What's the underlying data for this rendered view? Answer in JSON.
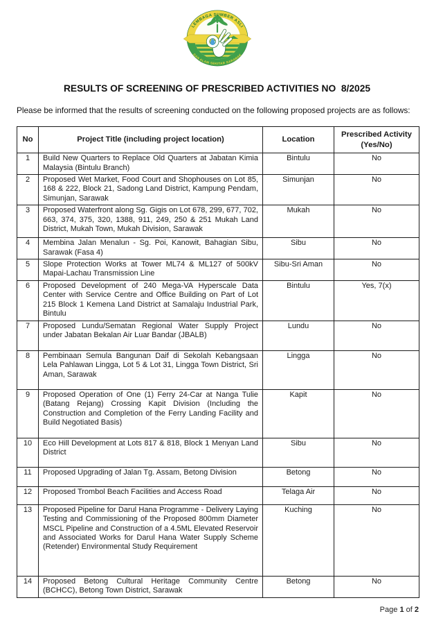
{
  "document": {
    "title": "RESULTS OF SCREENING OF PRESCRIBED ACTIVITIES NO  8/2025",
    "intro": "Please be informed that the results of screening conducted on the following proposed projects are as follows:",
    "footer": {
      "prefix": "Page",
      "page_number": "1",
      "separator": "of",
      "total_pages": "2"
    }
  },
  "logo": {
    "name": "lembaga-sumber-asli-dan-alam-sekitar-sarawak-logo",
    "top_arc_text": "LEMBAGA SUMBER ASLI",
    "bottom_arc_text": "DAN ALAM SEKITAR SARAWAK",
    "colors": {
      "yellow": "#edd63f",
      "green": "#3fa04b",
      "dark_green": "#1f7a33",
      "stripe_yellow": "#e6dc4a",
      "drop_blue": "#4da3d9",
      "white": "#ffffff"
    }
  },
  "table": {
    "headers": {
      "no": "No",
      "project_title": "Project Title (including project location)",
      "location": "Location",
      "prescribed_activity": "Prescribed Activity (Yes/No)"
    },
    "rows": [
      {
        "no": "1",
        "title": "Build New Quarters to Replace Old Quarters at Jabatan Kimia Malaysia (Bintulu Branch)",
        "location": "Bintulu",
        "prescribed": "No"
      },
      {
        "no": "2",
        "title": "Proposed Wet Market, Food Court and Shophouses on Lot 85, 168 & 222, Block 21, Sadong Land District, Kampung Pendam, Simunjan, Sarawak",
        "location": "Simunjan",
        "prescribed": "No"
      },
      {
        "no": "3",
        "title": "Proposed Waterfront along Sg. Gigis on Lot 678, 299, 677, 702, 663, 374, 375, 320, 1388, 911, 249, 250 & 251 Mukah Land District, Mukah Town, Mukah Division, Sarawak",
        "location": "Mukah",
        "prescribed": "No"
      },
      {
        "no": "4",
        "title": "Membina Jalan Menalun - Sg. Poi, Kanowit, Bahagian Sibu, Sarawak (Fasa 4)",
        "location": "Sibu",
        "prescribed": "No"
      },
      {
        "no": "5",
        "title": "Slope Protection Works at Tower ML74 & ML127 of 500kV Mapai-Lachau Transmission Line",
        "location": "Sibu-Sri Aman",
        "prescribed": "No"
      },
      {
        "no": "6",
        "title": "Proposed Development of 240 Mega-VA Hyperscale Data Center with Service Centre and Office Building on Part of Lot 215 Block 1 Kemena Land District at Samalaju Industrial Park, Bintulu",
        "location": "Bintulu",
        "prescribed": "Yes, 7(x)"
      },
      {
        "no": "7",
        "title": "Proposed Lundu/Sematan Regional Water Supply Project under Jabatan Bekalan Air Luar Bandar (JBALB)",
        "location": "Lundu",
        "prescribed": "No"
      },
      {
        "no": "8",
        "title": "Pembinaan Semula Bangunan Daif di Sekolah Kebangsaan Lela Pahlawan Lingga, Lot 5 & Lot 31, Lingga Town District, Sri Aman, Sarawak",
        "location": "Lingga",
        "prescribed": "No"
      },
      {
        "no": "9",
        "title": "Proposed Operation of One (1) Ferry 24-Car at Nanga Tulie (Batang Rejang) Crossing Kapit Division (Including the Construction and Completion of the Ferry Landing Facility and Build Negotiated Basis)",
        "location": "Kapit",
        "prescribed": "No"
      },
      {
        "no": "10",
        "title": "Eco Hill Development at Lots 817 & 818, Block 1 Menyan Land District",
        "location": "Sibu",
        "prescribed": "No"
      },
      {
        "no": "11",
        "title": "Proposed Upgrading of Jalan Tg. Assam, Betong Division",
        "location": "Betong",
        "prescribed": "No"
      },
      {
        "no": "12",
        "title": "Proposed Trombol Beach Facilities and Access Road",
        "location": "Telaga Air",
        "prescribed": "No"
      },
      {
        "no": "13",
        "title": "Proposed Pipeline for Darul Hana Programme - Delivery Laying Testing and Commissioning of the Proposed 800mm Diameter MSCL Pipeline and Construction of a 4.5ML Elevated Reservoir and Associated Works for Darul Hana Water Supply Scheme (Retender) Environmental Study Requirement",
        "location": "Kuching",
        "prescribed": "No"
      },
      {
        "no": "14",
        "title": "Proposed Betong Cultural Heritage Community Centre (BCHCC), Betong Town District, Sarawak",
        "location": "Betong",
        "prescribed": "No"
      }
    ]
  }
}
